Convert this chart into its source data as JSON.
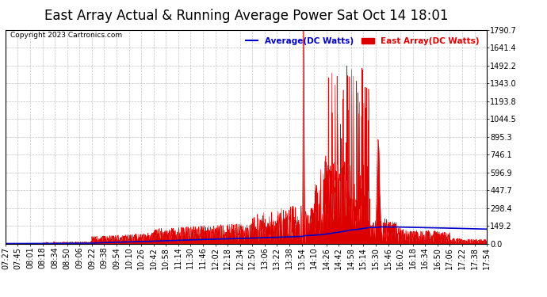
{
  "title": "East Array Actual & Running Average Power Sat Oct 14 18:01",
  "copyright": "Copyright 2023 Cartronics.com",
  "legend_avg": "Average(DC Watts)",
  "legend_east": "East Array(DC Watts)",
  "ylabel_values": [
    0.0,
    149.2,
    298.4,
    447.7,
    596.9,
    746.1,
    895.3,
    1044.5,
    1193.8,
    1343.0,
    1492.2,
    1641.4,
    1790.7
  ],
  "ylim": [
    0.0,
    1790.7
  ],
  "xtick_labels": [
    "07:27",
    "07:45",
    "08:01",
    "08:18",
    "08:34",
    "08:50",
    "09:06",
    "09:22",
    "09:38",
    "09:54",
    "10:10",
    "10:26",
    "10:42",
    "10:58",
    "11:14",
    "11:30",
    "11:46",
    "12:02",
    "12:18",
    "12:34",
    "12:50",
    "13:06",
    "13:22",
    "13:38",
    "13:54",
    "14:10",
    "14:26",
    "14:42",
    "14:58",
    "15:14",
    "15:30",
    "15:46",
    "16:02",
    "16:18",
    "16:34",
    "16:50",
    "17:06",
    "17:22",
    "17:38",
    "17:54"
  ],
  "background_color": "#ffffff",
  "grid_color": "#aaaaaa",
  "title_fontsize": 12,
  "tick_fontsize": 7,
  "avg_line_color": "#0000cc",
  "east_fill_color": "#dd0000",
  "east_line_color": "#dd0000"
}
